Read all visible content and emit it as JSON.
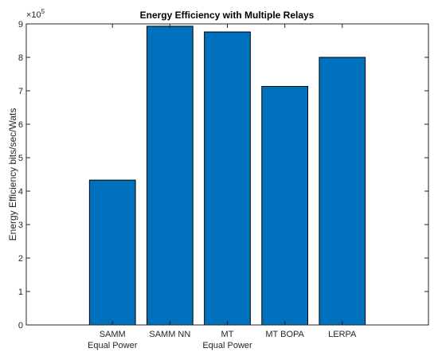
{
  "chart_data": {
    "type": "bar",
    "title": "Energy Efficiency with Multiple Relays",
    "ylabel": "Energy Efficiency bits/sec/Wats",
    "xlabel": "",
    "categories": [
      [
        "SAMM",
        "Equal Power"
      ],
      [
        "SAMM NN"
      ],
      [
        "MT",
        "Equal Power"
      ],
      [
        "MT BOPA"
      ],
      [
        "LERPA"
      ]
    ],
    "values": [
      433000,
      893000,
      876000,
      713000,
      800000
    ],
    "ylim": [
      0,
      900000
    ],
    "yticks": [
      0,
      100000,
      200000,
      300000,
      400000,
      500000,
      600000,
      700000,
      800000,
      900000
    ],
    "ytick_labels": [
      "0",
      "1",
      "2",
      "3",
      "4",
      "5",
      "6",
      "7",
      "8",
      "9"
    ],
    "y_exponent_base": "×10",
    "y_exponent": "5",
    "bar_color": "#0072BD",
    "grid": false
  }
}
